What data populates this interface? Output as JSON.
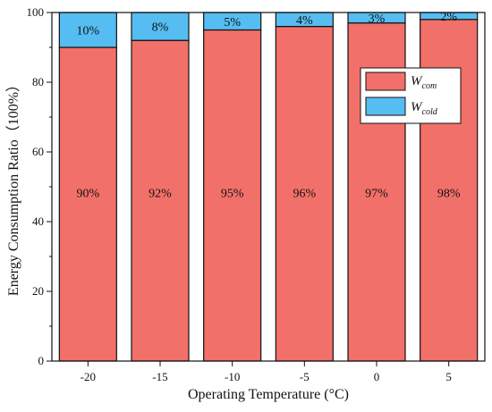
{
  "chart_data": {
    "type": "bar",
    "stacked": true,
    "categories": [
      "-20",
      "-15",
      "-10",
      "-5",
      "0",
      "5"
    ],
    "series": [
      {
        "name": "W_com",
        "legend_base": "W",
        "legend_sub": "com",
        "color": "#f2706a",
        "values": [
          90,
          92,
          95,
          96,
          97,
          98
        ],
        "labels": [
          "90%",
          "92%",
          "95%",
          "96%",
          "97%",
          "98%"
        ]
      },
      {
        "name": "W_cold",
        "legend_base": "W",
        "legend_sub": "cold",
        "color": "#55bdf2",
        "values": [
          10,
          8,
          5,
          4,
          3,
          2
        ],
        "labels": [
          "10%",
          "8%",
          "5%",
          "4%",
          "3%",
          "2%"
        ]
      }
    ],
    "xlabel": "Operating Temperature (°C)",
    "ylabel": "Energy Consumption Ratio（100%）",
    "ylim": [
      0,
      100
    ],
    "yticks": [
      "0",
      "20",
      "40",
      "60",
      "80",
      "100"
    ],
    "grid": false,
    "legend_position": "top-right"
  }
}
